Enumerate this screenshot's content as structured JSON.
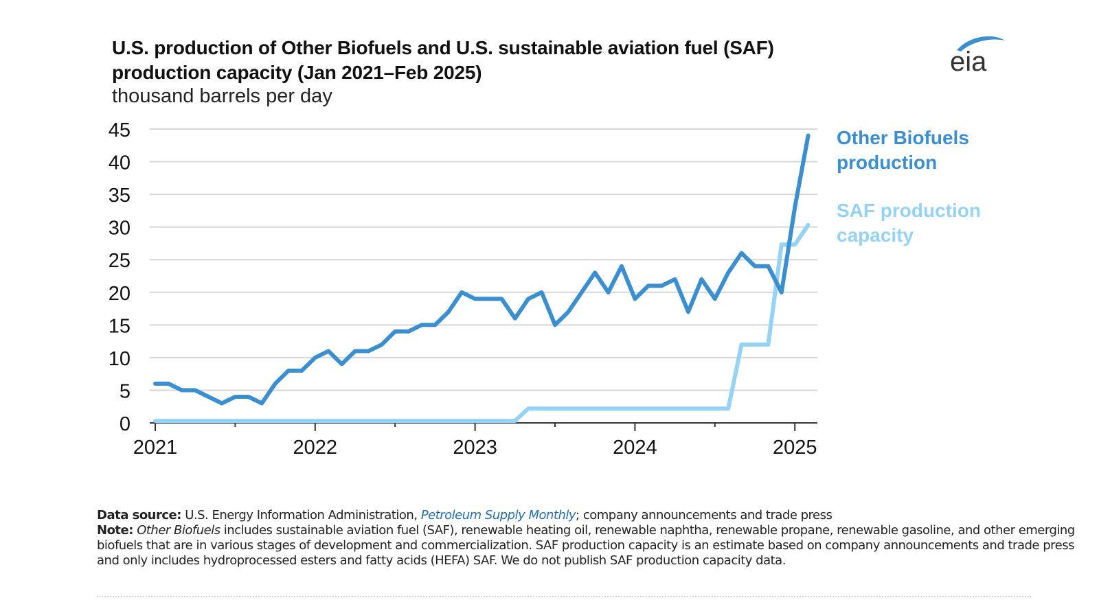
{
  "header": {
    "title_line1": "U.S. production of Other Biofuels and U.S. sustainable aviation fuel (SAF)",
    "title_line2": "production capacity (Jan 2021–Feb 2025)",
    "units": "thousand barrels per day"
  },
  "logo": {
    "text": "eia",
    "icon": "eia-logo"
  },
  "colors": {
    "production": "#3a8fd0",
    "capacity": "#94d3f5",
    "grid": "#d6d6d6",
    "axis": "#333333"
  },
  "chart_data": {
    "type": "line",
    "title": "U.S. production of Other Biofuels and U.S. sustainable aviation fuel (SAF) production capacity (Jan 2021–Feb 2025)",
    "ylabel": "thousand barrels per day",
    "xlabel": "",
    "ylim": [
      0,
      45
    ],
    "yticks": [
      "0",
      "5",
      "10",
      "15",
      "20",
      "25",
      "30",
      "35",
      "40",
      "45"
    ],
    "xticks": [
      "2021",
      "2022",
      "2023",
      "2024",
      "2025"
    ],
    "grid": true,
    "legend": "direct labels at right end of lines",
    "x": [
      "2021-01",
      "2021-02",
      "2021-03",
      "2021-04",
      "2021-05",
      "2021-06",
      "2021-07",
      "2021-08",
      "2021-09",
      "2021-10",
      "2021-11",
      "2021-12",
      "2022-01",
      "2022-02",
      "2022-03",
      "2022-04",
      "2022-05",
      "2022-06",
      "2022-07",
      "2022-08",
      "2022-09",
      "2022-10",
      "2022-11",
      "2022-12",
      "2023-01",
      "2023-02",
      "2023-03",
      "2023-04",
      "2023-05",
      "2023-06",
      "2023-07",
      "2023-08",
      "2023-09",
      "2023-10",
      "2023-11",
      "2023-12",
      "2024-01",
      "2024-02",
      "2024-03",
      "2024-04",
      "2024-05",
      "2024-06",
      "2024-07",
      "2024-08",
      "2024-09",
      "2024-10",
      "2024-11",
      "2024-12",
      "2025-01",
      "2025-02"
    ],
    "series": [
      {
        "name": "Other Biofuels production",
        "label_line1": "Other Biofuels",
        "label_line2": "production",
        "values": [
          6,
          6,
          5,
          5,
          4,
          3,
          4,
          4,
          3,
          6,
          8,
          8,
          10,
          11,
          9,
          11,
          11,
          12,
          14,
          14,
          15,
          15,
          17,
          20,
          19,
          19,
          19,
          16,
          19,
          20,
          15,
          17,
          20,
          23,
          20,
          24,
          19,
          21,
          21,
          22,
          17,
          22,
          19,
          23,
          26,
          24,
          24,
          20,
          33,
          44
        ]
      },
      {
        "name": "SAF production capacity",
        "label_line1": "SAF production",
        "label_line2": "capacity",
        "values": [
          0.3,
          0.3,
          0.3,
          0.3,
          0.3,
          0.3,
          0.3,
          0.3,
          0.3,
          0.3,
          0.3,
          0.3,
          0.3,
          0.3,
          0.3,
          0.3,
          0.3,
          0.3,
          0.3,
          0.3,
          0.3,
          0.3,
          0.3,
          0.3,
          0.3,
          0.3,
          0.3,
          0.3,
          2.2,
          2.2,
          2.2,
          2.2,
          2.2,
          2.2,
          2.2,
          2.2,
          2.2,
          2.2,
          2.2,
          2.2,
          2.2,
          2.2,
          2.2,
          2.2,
          12,
          12,
          12,
          27.3,
          27.3,
          30.3
        ]
      }
    ]
  },
  "footer": {
    "source_label": "Data source:",
    "source_text_1": "U.S. Energy Information Administration, ",
    "source_link": "Petroleum Supply Monthly",
    "source_text_2": "; company announcements and trade press",
    "note_label": "Note:",
    "note_italic": "Other Biofuels",
    "note_text": " includes sustainable aviation fuel (SAF), renewable heating oil, renewable naphtha, renewable propane, renewable gasoline, and other emerging biofuels that are in various stages of development and commercialization. SAF production capacity is an estimate based on company announcements and trade press and only includes hydroprocessed esters and fatty acids (HEFA) SAF. We do not publish SAF production capacity data."
  }
}
